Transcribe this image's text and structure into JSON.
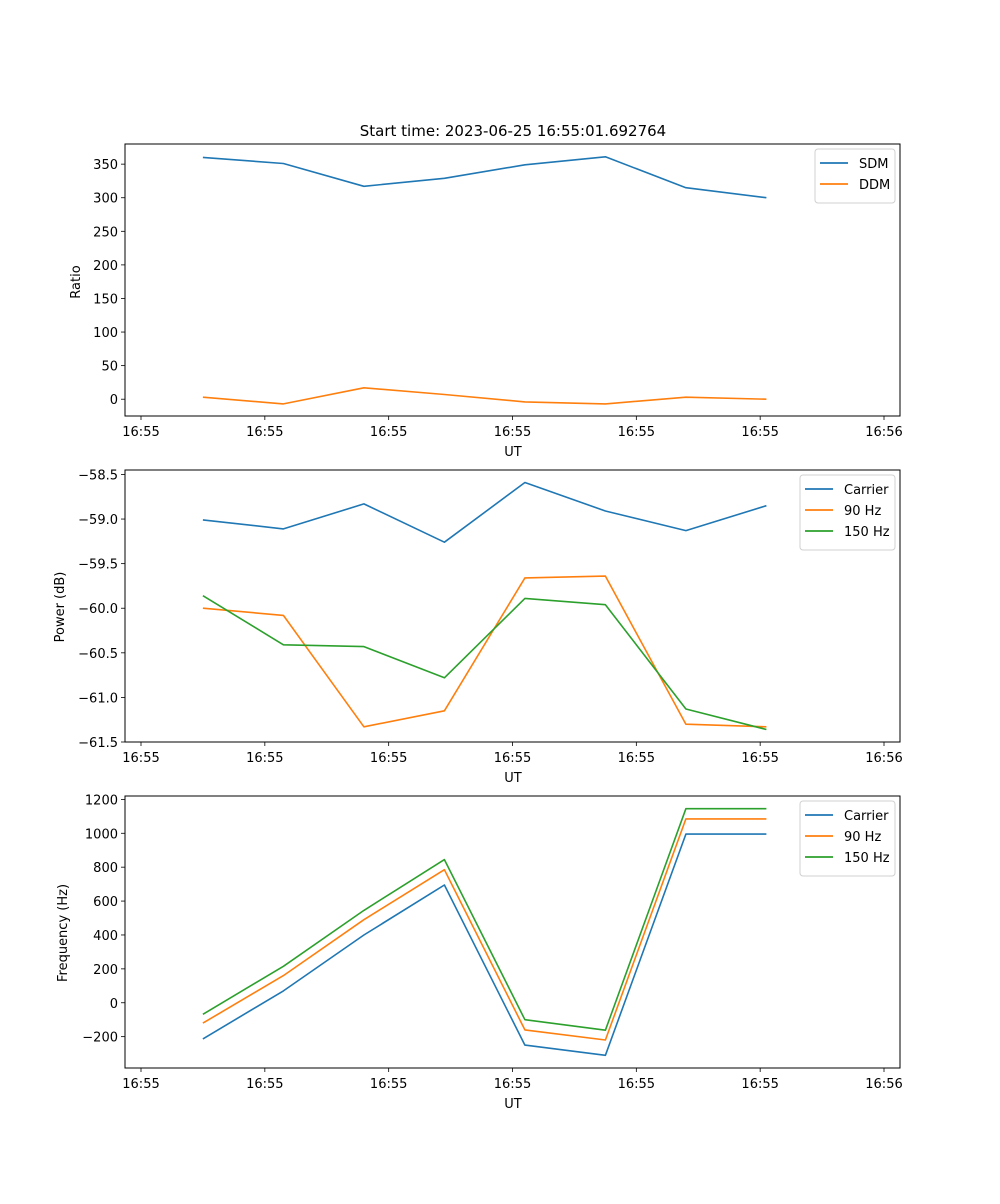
{
  "chart_data": [
    {
      "type": "line",
      "title": "Start time: 2023-06-25 16:55:01.692764",
      "xlabel": "UT",
      "ylabel": "Ratio",
      "xlim": [
        0,
        9
      ],
      "ylim": [
        -25,
        380
      ],
      "x_ticks": [
        0,
        1,
        2,
        3,
        4,
        5,
        6
      ],
      "x_tick_labels": [
        "16:55",
        "16:55",
        "16:55",
        "16:55",
        "16:55",
        "16:55",
        "16:56"
      ],
      "y_ticks": [
        0,
        50,
        100,
        150,
        200,
        250,
        300,
        350
      ],
      "y_tick_labels": [
        "0",
        "50",
        "100",
        "150",
        "200",
        "250",
        "300",
        "350"
      ],
      "x": [
        0.5,
        1.15,
        1.8,
        2.45,
        3.1,
        3.75,
        4.4,
        5.05
      ],
      "legend_position": "top-right",
      "series": [
        {
          "name": "SDM",
          "color": "#1f77b4",
          "values": [
            360,
            351,
            317,
            329,
            349,
            361,
            315,
            300
          ]
        },
        {
          "name": "DDM",
          "color": "#ff7f0e",
          "values": [
            3,
            -7,
            17,
            7,
            -4,
            -7,
            3,
            0
          ]
        }
      ]
    },
    {
      "type": "line",
      "title": "",
      "xlabel": "UT",
      "ylabel": "Power (dB)",
      "xlim": [
        0,
        9
      ],
      "ylim": [
        -61.5,
        -58.45
      ],
      "x_ticks": [
        0,
        1,
        2,
        3,
        4,
        5,
        6
      ],
      "x_tick_labels": [
        "16:55",
        "16:55",
        "16:55",
        "16:55",
        "16:55",
        "16:55",
        "16:56"
      ],
      "y_ticks": [
        -61.5,
        -61.0,
        -60.5,
        -60.0,
        -59.5,
        -59.0,
        -58.5
      ],
      "y_tick_labels": [
        "−61.5",
        "−61.0",
        "−60.5",
        "−60.0",
        "−59.5",
        "−59.0",
        "−58.5"
      ],
      "x": [
        0.5,
        1.15,
        1.8,
        2.45,
        3.1,
        3.75,
        4.4,
        5.05
      ],
      "legend_position": "top-right",
      "series": [
        {
          "name": "Carrier",
          "color": "#1f77b4",
          "values": [
            -59.01,
            -59.11,
            -58.83,
            -59.26,
            -58.59,
            -58.91,
            -59.13,
            -58.85
          ]
        },
        {
          "name": "90 Hz",
          "color": "#ff7f0e",
          "values": [
            -60.0,
            -60.08,
            -61.33,
            -61.15,
            -59.66,
            -59.64,
            -61.3,
            -61.33
          ]
        },
        {
          "name": "150 Hz",
          "color": "#2ca02c",
          "values": [
            -59.86,
            -60.41,
            -60.43,
            -60.78,
            -59.89,
            -59.96,
            -61.13,
            -61.36
          ]
        }
      ]
    },
    {
      "type": "line",
      "title": "",
      "xlabel": "UT",
      "ylabel": "Frequency (Hz)",
      "xlim": [
        0,
        9
      ],
      "ylim": [
        -385,
        1220
      ],
      "x_ticks": [
        0,
        1,
        2,
        3,
        4,
        5,
        6
      ],
      "x_tick_labels": [
        "16:55",
        "16:55",
        "16:55",
        "16:55",
        "16:55",
        "16:55",
        "16:56"
      ],
      "y_ticks": [
        -200,
        0,
        200,
        400,
        600,
        800,
        1000,
        1200
      ],
      "y_tick_labels": [
        "−200",
        "0",
        "200",
        "400",
        "600",
        "800",
        "1000",
        "1200"
      ],
      "x": [
        0.5,
        1.15,
        1.8,
        2.45,
        3.1,
        3.75,
        4.4,
        5.05
      ],
      "legend_position": "top-right",
      "series": [
        {
          "name": "Carrier",
          "color": "#1f77b4",
          "values": [
            -213,
            70,
            400,
            695,
            -250,
            -310,
            995,
            995
          ]
        },
        {
          "name": "90 Hz",
          "color": "#ff7f0e",
          "values": [
            -120,
            160,
            490,
            785,
            -160,
            -220,
            1085,
            1085
          ]
        },
        {
          "name": "150 Hz",
          "color": "#2ca02c",
          "values": [
            -68,
            215,
            545,
            845,
            -100,
            -162,
            1145,
            1145
          ]
        }
      ]
    }
  ]
}
